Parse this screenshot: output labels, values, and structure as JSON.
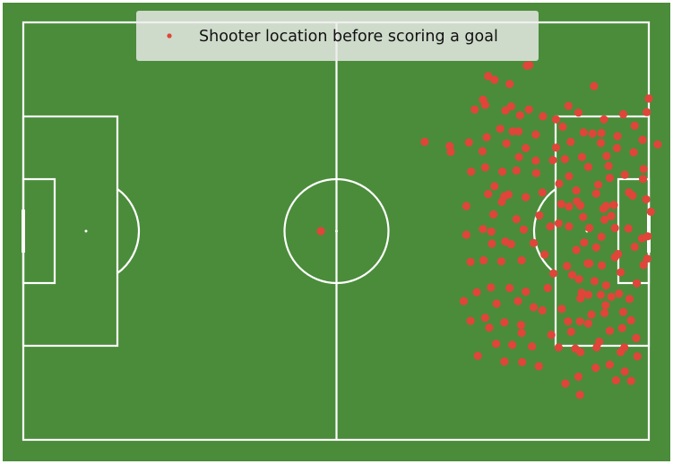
{
  "chart_data": {
    "type": "scatter",
    "title": "",
    "xlabel": "",
    "ylabel": "",
    "xlim": [
      0,
      120
    ],
    "ylim": [
      0,
      80
    ],
    "grid": false,
    "legend_position": "top-center",
    "colors": {
      "pitch": "#4a8c3a",
      "lines": "#ffffff",
      "marker": "#e0453a",
      "legend_bg": "#ececea"
    },
    "series": [
      {
        "name": "Shooter location before scoring a goal",
        "points": [
          [
            57.1,
            40.0
          ],
          [
            97.1,
            71.8
          ],
          [
            90.4,
            69.0
          ],
          [
            89.2,
            69.7
          ],
          [
            93.3,
            68.2
          ],
          [
            96.6,
            71.7
          ],
          [
            95.3,
            62.2
          ],
          [
            92.5,
            63.1
          ],
          [
            88.2,
            65.2
          ],
          [
            85.5,
            57.0
          ],
          [
            81.8,
            56.3
          ],
          [
            77.0,
            57.1
          ],
          [
            104.6,
            64.0
          ],
          [
            106.5,
            62.7
          ],
          [
            109.2,
            58.7
          ],
          [
            111.4,
            61.4
          ],
          [
            115.1,
            62.4
          ],
          [
            117.3,
            60.2
          ],
          [
            117.1,
            55.1
          ],
          [
            113.9,
            55.9
          ],
          [
            110.8,
            56.9
          ],
          [
            107.5,
            58.9
          ],
          [
            105.0,
            57.1
          ],
          [
            103.5,
            60.0
          ],
          [
            104.7,
            50.5
          ],
          [
            107.2,
            54.2
          ],
          [
            111.9,
            54.4
          ],
          [
            114.0,
            58.2
          ],
          [
            118.8,
            57.5
          ],
          [
            121.7,
            56.6
          ],
          [
            119.0,
            51.9
          ],
          [
            116.2,
            47.4
          ],
          [
            112.5,
            50.2
          ],
          [
            108.4,
            52.3
          ],
          [
            106.1,
            47.8
          ],
          [
            104.7,
            44.7
          ],
          [
            106.1,
            36.4
          ],
          [
            109.9,
            36.9
          ],
          [
            112.8,
            42.9
          ],
          [
            116.9,
            46.8
          ],
          [
            119.5,
            46.1
          ],
          [
            117.3,
            37.0
          ],
          [
            114.1,
            35.6
          ],
          [
            110.9,
            38.9
          ],
          [
            108.6,
            40.6
          ],
          [
            104.7,
            40.9
          ],
          [
            106.9,
            44.9
          ],
          [
            111.8,
            44.8
          ],
          [
            105.3,
            31.6
          ],
          [
            106.9,
            27.1
          ],
          [
            111.7,
            25.8
          ],
          [
            116.3,
            27.0
          ],
          [
            117.7,
            30.0
          ],
          [
            119.7,
            34.7
          ],
          [
            119.8,
            39.0
          ],
          [
            116.1,
            40.5
          ],
          [
            113.5,
            35.0
          ],
          [
            111.0,
            33.4
          ],
          [
            108.3,
            33.8
          ],
          [
            104.3,
            33.3
          ],
          [
            106.8,
            22.7
          ],
          [
            109.0,
            24.0
          ],
          [
            112.5,
            20.9
          ],
          [
            115.1,
            24.5
          ],
          [
            114.3,
            28.0
          ],
          [
            111.8,
            29.6
          ],
          [
            109.6,
            30.4
          ],
          [
            106.6,
            30.8
          ],
          [
            104.5,
            22.7
          ],
          [
            106.9,
            16.8
          ],
          [
            110.5,
            18.8
          ],
          [
            112.5,
            14.4
          ],
          [
            115.3,
            17.7
          ],
          [
            114.9,
            21.4
          ],
          [
            111.5,
            24.3
          ],
          [
            108.4,
            22.3
          ],
          [
            105.9,
            17.5
          ],
          [
            106.5,
            12.1
          ],
          [
            109.8,
            13.8
          ],
          [
            113.7,
            11.4
          ],
          [
            115.4,
            13.1
          ],
          [
            114.6,
            16.8
          ],
          [
            108.6,
            33.8
          ],
          [
            107.1,
            28.2
          ],
          [
            88.6,
            64.2
          ],
          [
            93.6,
            63.9
          ],
          [
            97.0,
            63.3
          ],
          [
            99.7,
            62.0
          ],
          [
            98.3,
            58.5
          ],
          [
            95.0,
            59.1
          ],
          [
            91.5,
            59.6
          ],
          [
            88.9,
            58.0
          ],
          [
            88.1,
            55.3
          ],
          [
            92.7,
            56.8
          ],
          [
            95.1,
            54.2
          ],
          [
            98.3,
            53.5
          ],
          [
            101.6,
            53.6
          ],
          [
            102.2,
            56.0
          ],
          [
            98.4,
            51.1
          ],
          [
            94.6,
            51.6
          ],
          [
            91.9,
            51.4
          ],
          [
            88.6,
            52.2
          ],
          [
            90.4,
            48.6
          ],
          [
            93.1,
            47.0
          ],
          [
            96.4,
            46.5
          ],
          [
            99.6,
            47.4
          ],
          [
            99.0,
            43.0
          ],
          [
            94.6,
            42.3
          ],
          [
            90.2,
            43.2
          ],
          [
            88.2,
            40.4
          ],
          [
            89.9,
            37.6
          ],
          [
            93.6,
            37.5
          ],
          [
            97.9,
            37.7
          ],
          [
            101.1,
            40.9
          ],
          [
            100.0,
            35.5
          ],
          [
            95.6,
            34.4
          ],
          [
            91.7,
            34.2
          ],
          [
            88.3,
            34.4
          ],
          [
            89.7,
            29.2
          ],
          [
            93.3,
            29.1
          ],
          [
            96.4,
            28.4
          ],
          [
            100.6,
            29.1
          ],
          [
            101.7,
            31.9
          ],
          [
            97.9,
            25.4
          ],
          [
            94.9,
            26.6
          ],
          [
            90.8,
            26.1
          ],
          [
            87.0,
            28.3
          ],
          [
            88.6,
            23.4
          ],
          [
            92.3,
            22.5
          ],
          [
            95.5,
            22.0
          ],
          [
            99.6,
            24.8
          ],
          [
            103.3,
            25.1
          ],
          [
            101.3,
            20.1
          ],
          [
            97.6,
            17.9
          ],
          [
            93.8,
            18.2
          ],
          [
            90.7,
            18.4
          ],
          [
            92.3,
            15.0
          ],
          [
            95.7,
            14.9
          ],
          [
            98.9,
            14.1
          ],
          [
            95.6,
            20.5
          ],
          [
            92.5,
            38.0
          ],
          [
            96.0,
            40.3
          ],
          [
            93.9,
            59.1
          ],
          [
            91.8,
            45.6
          ],
          [
            106.2,
            45.7
          ],
          [
            109.9,
            47.2
          ],
          [
            113.3,
            45.0
          ],
          [
            111.5,
            42.2
          ],
          [
            107.4,
            42.7
          ],
          [
            110.3,
            48.9
          ],
          [
            107.6,
            37.8
          ],
          [
            103.9,
            53.8
          ],
          [
            110.8,
            27.8
          ],
          [
            108.4,
            27.8
          ],
          [
            105.1,
            20.7
          ],
          [
            116.6,
            11.3
          ],
          [
            120.0,
            65.4
          ],
          [
            119.6,
            62.8
          ],
          [
            118.9,
            50.0
          ],
          [
            120.4,
            43.7
          ],
          [
            119.0,
            33.5
          ],
          [
            102.7,
            17.7
          ],
          [
            106.8,
            8.6
          ],
          [
            109.5,
            67.8
          ],
          [
            86.6,
            63.3
          ],
          [
            92.3,
            46.7
          ],
          [
            82.0,
            55.2
          ],
          [
            85.9,
            51.4
          ],
          [
            85.0,
            44.8
          ],
          [
            85.0,
            39.3
          ],
          [
            85.8,
            34.1
          ],
          [
            84.5,
            26.6
          ],
          [
            85.8,
            22.8
          ],
          [
            87.2,
            16.1
          ],
          [
            89.4,
            21.5
          ],
          [
            89.8,
            39.9
          ],
          [
            89.2,
            47.1
          ],
          [
            96.4,
            55.9
          ],
          [
            110.9,
            58.8
          ],
          [
            112.3,
            52.5
          ],
          [
            102.7,
            41.5
          ],
          [
            102.8,
            49.1
          ],
          [
            102.2,
            61.4
          ],
          [
            111.3,
            44.3
          ],
          [
            110.0,
            17.7
          ],
          [
            104.0,
            10.8
          ],
          [
            117.8,
            16.0
          ],
          [
            117.6,
            19.5
          ],
          [
            116.6,
            22.9
          ],
          [
            114.6,
            32.1
          ],
          [
            113.5,
            40.6
          ],
          [
            115.4,
            50.8
          ],
          [
            103.2,
            45.2
          ],
          [
            118.7,
            38.6
          ],
          [
            112.8,
            27.4
          ]
        ]
      }
    ]
  }
}
